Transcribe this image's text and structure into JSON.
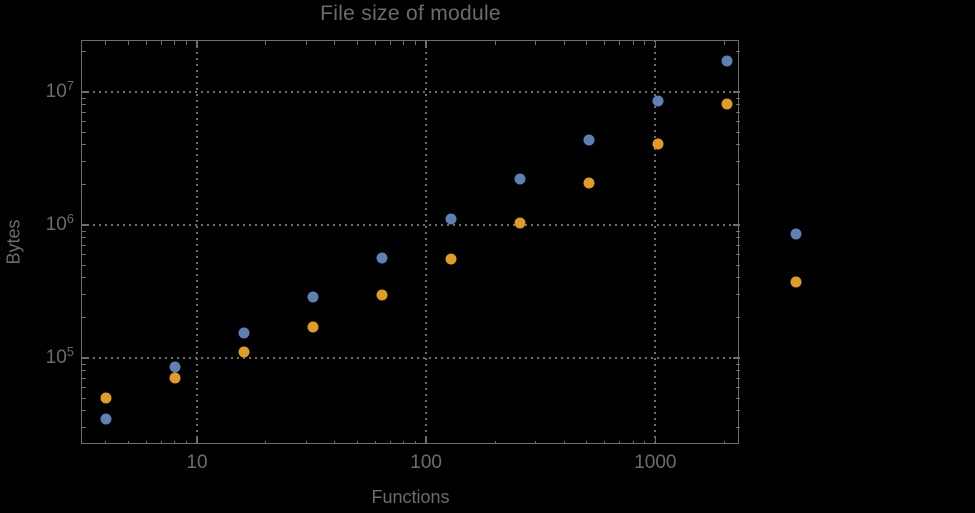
{
  "page": {
    "background": "#000000"
  },
  "colors": {
    "text": "#6c6c6c",
    "frame": "#6e6e6e",
    "grid": "#6e6e6e",
    "series_blue": "#5E81B5",
    "series_orange": "#E09C24"
  },
  "chart_data": {
    "type": "scatter",
    "title": "File size of module",
    "xlabel": "Functions",
    "ylabel": "Bytes",
    "x_scale": "log",
    "y_scale": "log",
    "x_range": [
      3.1,
      2350
    ],
    "y_range": [
      22500,
      24000000
    ],
    "grid": "dotted gray gridlines at decade ticks, framed plot, no legend",
    "legend": "none",
    "x": [
      4,
      8,
      16,
      32,
      64,
      128,
      256,
      512,
      1024,
      2048,
      4096
    ],
    "series": [
      {
        "name": "blue",
        "color": "#5E81B5",
        "values": [
          35000,
          86000,
          155000,
          290000,
          565000,
          1110000,
          2220000,
          4360000,
          8560000,
          17100000,
          860000
        ]
      },
      {
        "name": "orange",
        "color": "#E09C24",
        "values": [
          50000,
          71000,
          110000,
          170000,
          300000,
          555000,
          1040000,
          2070000,
          4060000,
          8100000,
          370000
        ]
      }
    ],
    "x_ticks_major": [
      10,
      100,
      1000
    ],
    "x_tick_labels": [
      "10",
      "100",
      "1000"
    ],
    "x_ticks_minor": [
      4,
      5,
      6,
      7,
      8,
      9,
      20,
      30,
      40,
      50,
      60,
      70,
      80,
      90,
      200,
      300,
      400,
      500,
      600,
      700,
      800,
      900,
      2000
    ],
    "y_ticks_major": [
      100000,
      1000000,
      10000000
    ],
    "y_tick_labels": [
      {
        "base": "10",
        "exp": "5"
      },
      {
        "base": "10",
        "exp": "6"
      },
      {
        "base": "10",
        "exp": "7"
      }
    ],
    "y_ticks_minor": [
      30000,
      40000,
      50000,
      60000,
      70000,
      80000,
      90000,
      200000,
      300000,
      400000,
      500000,
      600000,
      700000,
      800000,
      900000,
      2000000,
      3000000,
      4000000,
      5000000,
      6000000,
      7000000,
      8000000,
      9000000,
      20000000
    ]
  }
}
